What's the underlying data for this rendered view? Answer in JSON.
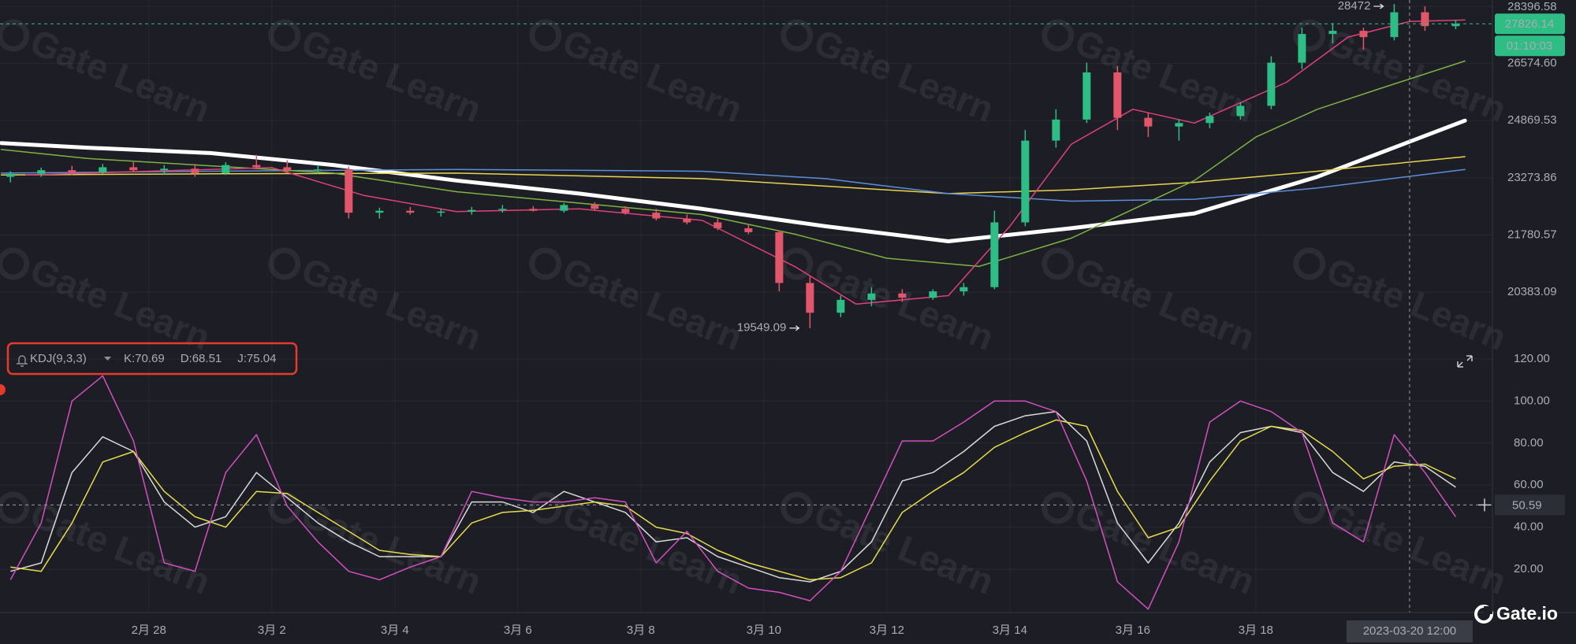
{
  "chart_data": [
    {
      "type": "candlestick",
      "log_scale": true,
      "grid": true,
      "xlim": [
        56.58,
        80.77
      ],
      "ylim": [
        19138,
        28605
      ],
      "xticks": [
        {
          "value": 59,
          "label": "2月 28"
        },
        {
          "value": 61,
          "label": "3月 2"
        },
        {
          "value": 63,
          "label": "3月 4"
        },
        {
          "value": 65,
          "label": "3月 6"
        },
        {
          "value": 67,
          "label": "3月 8"
        },
        {
          "value": 69,
          "label": "3月 10"
        },
        {
          "value": 71,
          "label": "3月 12"
        },
        {
          "value": 73,
          "label": "3月 14"
        },
        {
          "value": 75,
          "label": "3月 16"
        },
        {
          "value": 77,
          "label": "3月 18"
        }
      ],
      "yticks": [
        28396.58,
        {
          "value": 26574.6,
          "label": "26574.60"
        },
        24869.53,
        23273.86,
        21780.57,
        20383.09
      ],
      "up_color": "#2ebd85",
      "down_color": "#e0566a",
      "x": [
        56.75,
        57.25,
        57.75,
        58.25,
        58.75,
        59.25,
        59.75,
        60.25,
        60.75,
        61.25,
        61.75,
        62.25,
        62.75,
        63.25,
        63.75,
        64.25,
        64.75,
        65.25,
        65.75,
        66.25,
        66.75,
        67.25,
        67.75,
        68.25,
        68.75,
        69.25,
        69.75,
        70.25,
        70.75,
        71.25,
        71.75,
        72.25,
        72.75,
        73.25,
        73.75,
        74.25,
        74.75,
        75.25,
        75.75,
        76.25,
        76.75,
        77.25,
        77.75,
        78.25,
        78.75,
        79.25,
        79.75,
        80.25
      ],
      "open": [
        23300,
        23380,
        23480,
        23420,
        23560,
        23480,
        23520,
        23400,
        23620,
        23560,
        23480,
        23500,
        22350,
        22400,
        22350,
        22380,
        22420,
        22450,
        22400,
        22550,
        22450,
        22350,
        22200,
        22100,
        21950,
        21850,
        20600,
        19900,
        20200,
        20350,
        20250,
        20400,
        20500,
        22100,
        24300,
        24900,
        26300,
        24950,
        24700,
        24800,
        25000,
        25300,
        26600,
        27500,
        27600,
        27400,
        28200,
        27750
      ],
      "high": [
        23450,
        23550,
        23600,
        23650,
        23700,
        23620,
        23650,
        23700,
        23900,
        23750,
        23620,
        23580,
        22480,
        22500,
        22450,
        22500,
        22550,
        22520,
        22600,
        22620,
        22520,
        22450,
        22300,
        22200,
        22050,
        21900,
        20750,
        20300,
        20500,
        20450,
        20450,
        20600,
        22400,
        24600,
        25200,
        26600,
        26500,
        25100,
        24900,
        25100,
        25400,
        26800,
        27700,
        27850,
        27700,
        28472,
        28400,
        27950
      ],
      "low": [
        23150,
        23300,
        23350,
        23380,
        23420,
        23350,
        23300,
        23350,
        23500,
        23400,
        23380,
        22200,
        22200,
        22300,
        22250,
        22300,
        22350,
        22380,
        22350,
        22400,
        22300,
        22150,
        22050,
        21900,
        21800,
        20400,
        19549.09,
        19800,
        20050,
        20150,
        20200,
        20300,
        20450,
        22000,
        24100,
        24800,
        24600,
        24400,
        24300,
        24650,
        24900,
        25200,
        26400,
        27200,
        27000,
        27300,
        27600,
        27650
      ],
      "close": [
        23380,
        23480,
        23420,
        23560,
        23480,
        23520,
        23400,
        23620,
        23560,
        23480,
        23500,
        22350,
        22400,
        22350,
        22380,
        22420,
        22450,
        22400,
        22550,
        22450,
        22350,
        22200,
        22100,
        21950,
        21850,
        20600,
        19900,
        20200,
        20350,
        20250,
        20400,
        20500,
        22100,
        24300,
        24900,
        26300,
        24950,
        24700,
        24800,
        25000,
        25300,
        26600,
        27500,
        27600,
        27400,
        28200,
        27750,
        27826.14
      ],
      "series": [
        {
          "color": "#ffffff",
          "line_width": 5,
          "x": [
            56.6,
            58,
            60,
            62,
            64,
            66,
            68,
            70,
            72,
            74,
            76,
            78,
            80.4
          ],
          "values": [
            24230,
            24100,
            23950,
            23620,
            23200,
            22850,
            22450,
            22000,
            21620,
            21950,
            22330,
            23300,
            24870
          ]
        },
        {
          "color": "#e8d44d",
          "line_width": 1.5,
          "x": [
            56.6,
            60,
            64,
            68,
            72,
            74,
            76,
            78,
            80.4
          ],
          "values": [
            23350,
            23380,
            23400,
            23250,
            22850,
            22950,
            23150,
            23450,
            23850
          ]
        },
        {
          "color": "#5b8fd9",
          "line_width": 1.5,
          "x": [
            56.6,
            60,
            64,
            68,
            70,
            72,
            74,
            76,
            78,
            80.4
          ],
          "values": [
            23400,
            23450,
            23500,
            23450,
            23250,
            22850,
            22650,
            22700,
            23000,
            23500
          ]
        },
        {
          "color": "#7cb342",
          "line_width": 1.5,
          "x": [
            56.6,
            58,
            60,
            62,
            64,
            66,
            68,
            69.5,
            71,
            72.5,
            74,
            76,
            77,
            78,
            79,
            80.4
          ],
          "values": [
            24050,
            23800,
            23600,
            23400,
            22900,
            22600,
            22300,
            21800,
            21200,
            21000,
            21700,
            23200,
            24400,
            25200,
            25800,
            26650
          ]
        },
        {
          "color": "#e0407a",
          "line_width": 1.5,
          "x": [
            57,
            59,
            61,
            62.5,
            64,
            66,
            68,
            69.5,
            70.5,
            72,
            73,
            74,
            75,
            76,
            77.5,
            78.5,
            79.5,
            80.4
          ],
          "values": [
            23350,
            23450,
            23550,
            22800,
            22380,
            22450,
            22150,
            21000,
            20100,
            20300,
            22000,
            24200,
            25200,
            24800,
            26000,
            27400,
            27900,
            27950
          ]
        }
      ],
      "countdown": "01:10:03",
      "crosshair": {
        "value": 79.5,
        "label": "2023-03-20 12:00"
      }
    },
    {
      "type": "line",
      "title": "KDJ(9,3,3)",
      "grid": true,
      "xlim": [
        56.58,
        80.77
      ],
      "ylim": [
        -0.6,
        126
      ],
      "yticks": [
        {
          "value": 120,
          "label": "120.00"
        },
        {
          "value": 100,
          "label": "100.00"
        },
        {
          "value": 80,
          "label": "80.00"
        },
        {
          "value": 60,
          "label": "60.00"
        },
        {
          "value": 40,
          "label": "40.00"
        },
        {
          "value": 20,
          "label": "20.00"
        }
      ],
      "x": [
        56.75,
        57.25,
        57.75,
        58.25,
        58.75,
        59.25,
        59.75,
        60.25,
        60.75,
        61.25,
        61.75,
        62.25,
        62.75,
        63.25,
        63.75,
        64.25,
        64.75,
        65.25,
        65.75,
        66.25,
        66.75,
        67.25,
        67.75,
        68.25,
        68.75,
        69.25,
        69.75,
        70.25,
        70.75,
        71.25,
        71.75,
        72.25,
        72.75,
        73.25,
        73.75,
        74.25,
        74.75,
        75.25,
        75.75,
        76.25,
        76.75,
        77.25,
        77.75,
        78.25,
        78.75,
        79.25,
        79.75,
        80.25
      ],
      "series": [
        {
          "name": "K:70.69",
          "color": "#d9d9d9",
          "values": [
            19,
            23,
            66,
            83,
            76,
            52,
            40,
            45,
            66,
            54,
            42,
            33,
            26,
            26,
            26,
            52,
            52,
            47,
            57,
            52,
            47,
            33,
            35,
            26,
            21,
            16,
            14,
            19,
            33,
            62,
            66,
            76,
            88,
            93,
            95,
            81,
            42,
            23,
            42,
            71,
            85,
            88,
            85,
            66,
            57,
            71,
            69,
            59
          ]
        },
        {
          "name": "D:68.51",
          "color": "#e6dc4a",
          "values": [
            21,
            19,
            42,
            71,
            76,
            57,
            45,
            40,
            57,
            56,
            47,
            38,
            29,
            27,
            26,
            42,
            47,
            48,
            50,
            52,
            50,
            40,
            37,
            29,
            23,
            19,
            15,
            16,
            23,
            47,
            57,
            66,
            78,
            85,
            91,
            88,
            57,
            35,
            40,
            62,
            81,
            88,
            86,
            76,
            63,
            69,
            70,
            63
          ]
        },
        {
          "name": "J:75.04",
          "color": "#d24fc0",
          "values": [
            15,
            42,
            100,
            112,
            81,
            23,
            19,
            66,
            84,
            50,
            33,
            19,
            15,
            21,
            26,
            57,
            54,
            52,
            52,
            54,
            52,
            23,
            38,
            19,
            11,
            9,
            5,
            19,
            50,
            81,
            81,
            90,
            100,
            100,
            95,
            62,
            14,
            1,
            33,
            90,
            100,
            95,
            85,
            42,
            33,
            84,
            66,
            45
          ]
        }
      ],
      "cursor_value": 50.59
    }
  ],
  "watermark": "Gate Learn",
  "brand": "Gate.io"
}
